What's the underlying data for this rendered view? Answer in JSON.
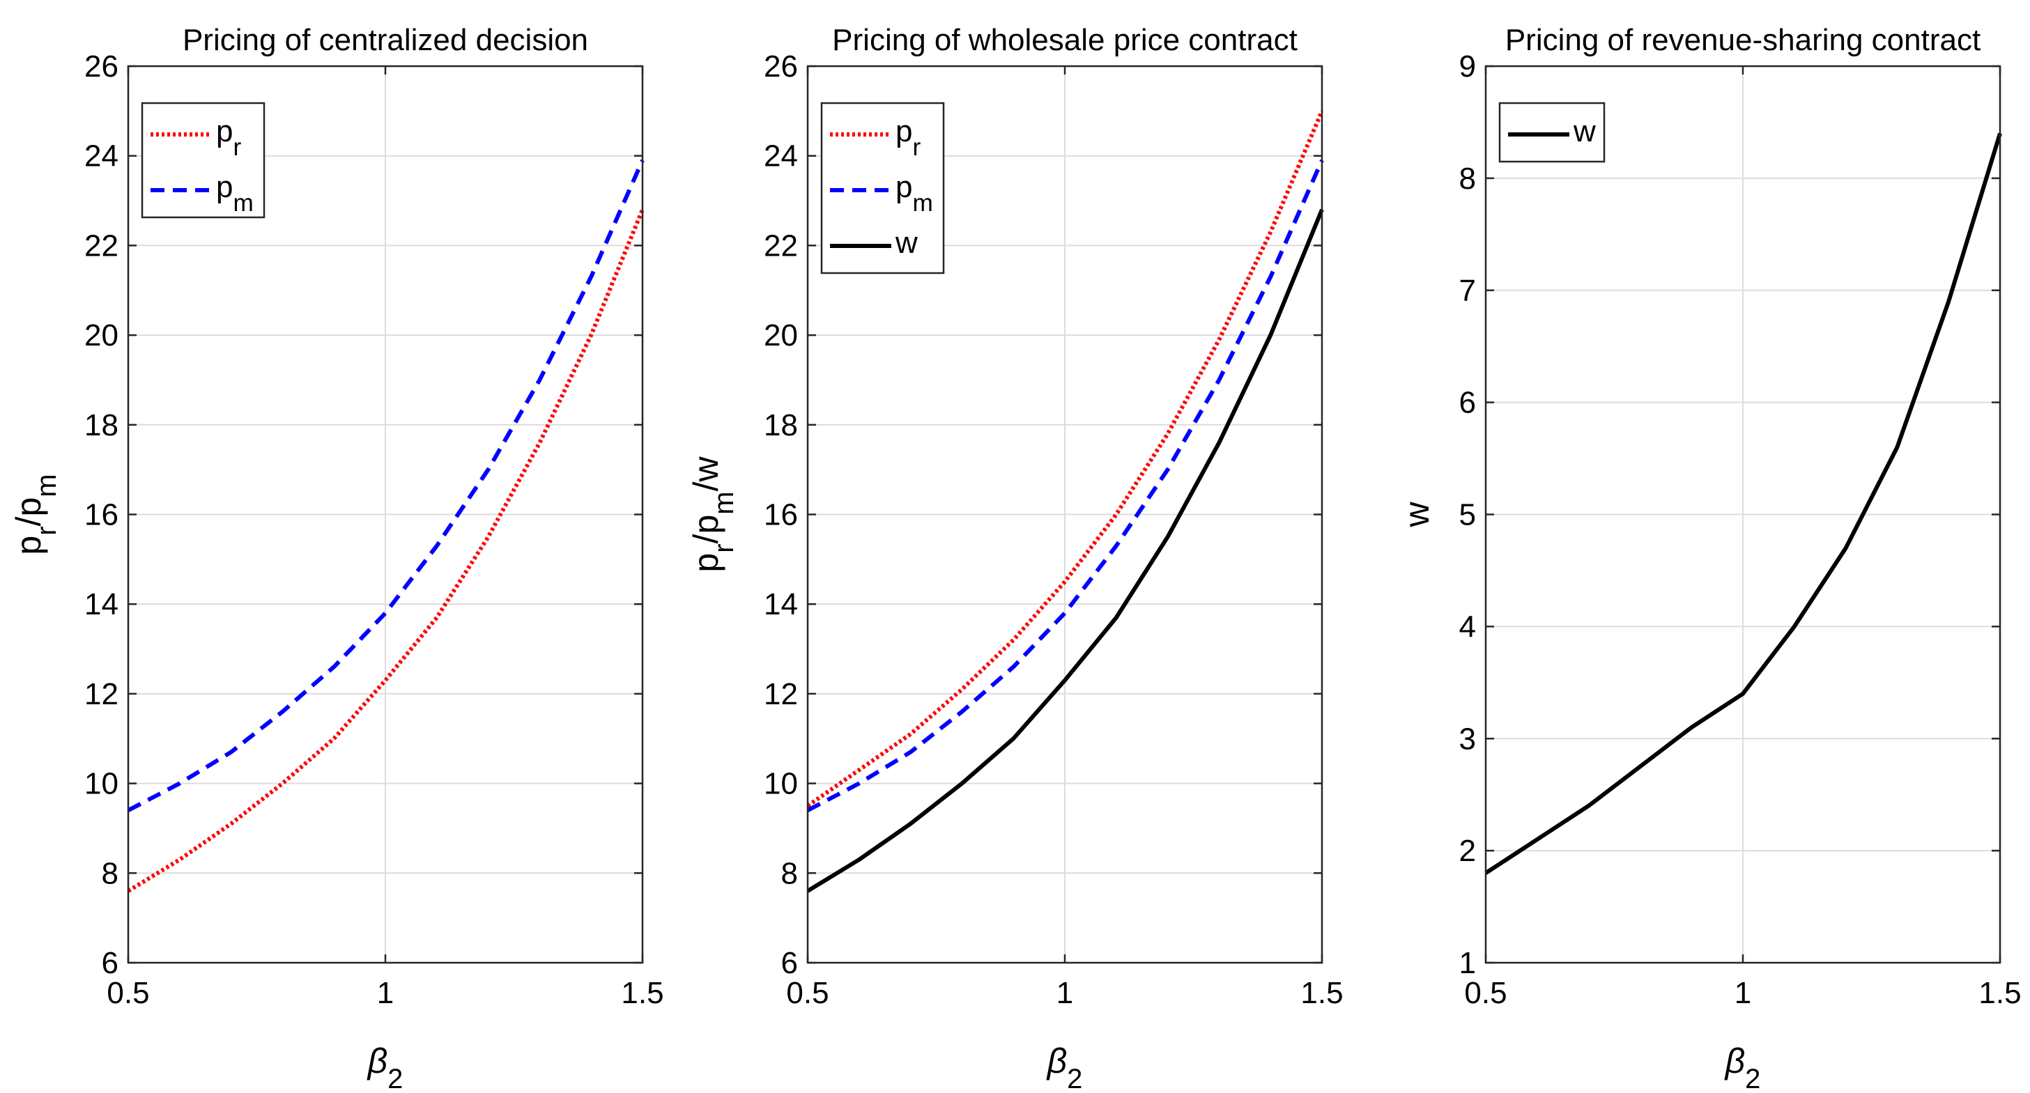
{
  "chart_data": [
    {
      "type": "line",
      "title": "Pricing of centralized decision",
      "xlabel": "β",
      "xlabel_sub": "2",
      "ylabel_parts": [
        {
          "t": "p",
          "sub": false
        },
        {
          "t": "r",
          "sub": true
        },
        {
          "t": "/p",
          "sub": false
        },
        {
          "t": "m",
          "sub": true
        }
      ],
      "xlim": [
        0.5,
        1.5
      ],
      "ylim": [
        6,
        26
      ],
      "xticks": [
        "0.5",
        "1",
        "1.5"
      ],
      "yticks": [
        "6",
        "8",
        "10",
        "12",
        "14",
        "16",
        "18",
        "20",
        "22",
        "24",
        "26"
      ],
      "grid": true,
      "legend_position": "top-left",
      "series": [
        {
          "name": "p",
          "name_sub": "r",
          "color": "#ff0000",
          "style": "dotted",
          "x": [
            0.5,
            0.6,
            0.7,
            0.8,
            0.9,
            1.0,
            1.1,
            1.2,
            1.3,
            1.4,
            1.5
          ],
          "values": [
            7.6,
            8.3,
            9.1,
            10.0,
            11.0,
            12.3,
            13.7,
            15.5,
            17.6,
            20.0,
            22.8
          ]
        },
        {
          "name": "p",
          "name_sub": "m",
          "color": "#0000ff",
          "style": "dashed",
          "x": [
            0.5,
            0.6,
            0.7,
            0.8,
            0.9,
            1.0,
            1.1,
            1.2,
            1.3,
            1.4,
            1.5
          ],
          "values": [
            9.4,
            10.0,
            10.7,
            11.6,
            12.6,
            13.8,
            15.3,
            17.0,
            19.0,
            21.3,
            23.9
          ]
        }
      ]
    },
    {
      "type": "line",
      "title": "Pricing of wholesale price contract",
      "xlabel": "β",
      "xlabel_sub": "2",
      "ylabel_parts": [
        {
          "t": "p",
          "sub": false
        },
        {
          "t": "r",
          "sub": true
        },
        {
          "t": "/p",
          "sub": false
        },
        {
          "t": "m",
          "sub": true
        },
        {
          "t": "/w",
          "sub": false
        }
      ],
      "xlim": [
        0.5,
        1.5
      ],
      "ylim": [
        6,
        26
      ],
      "xticks": [
        "0.5",
        "1",
        "1.5"
      ],
      "yticks": [
        "6",
        "8",
        "10",
        "12",
        "14",
        "16",
        "18",
        "20",
        "22",
        "24",
        "26"
      ],
      "grid": true,
      "legend_position": "top-left",
      "series": [
        {
          "name": "p",
          "name_sub": "r",
          "color": "#ff0000",
          "style": "dotted",
          "x": [
            0.5,
            0.6,
            0.7,
            0.8,
            0.9,
            1.0,
            1.1,
            1.2,
            1.3,
            1.4,
            1.5
          ],
          "values": [
            9.5,
            10.3,
            11.1,
            12.1,
            13.2,
            14.5,
            16.0,
            17.8,
            19.9,
            22.3,
            25.0
          ]
        },
        {
          "name": "p",
          "name_sub": "m",
          "color": "#0000ff",
          "style": "dashed",
          "x": [
            0.5,
            0.6,
            0.7,
            0.8,
            0.9,
            1.0,
            1.1,
            1.2,
            1.3,
            1.4,
            1.5
          ],
          "values": [
            9.4,
            10.0,
            10.7,
            11.6,
            12.6,
            13.8,
            15.3,
            17.0,
            19.0,
            21.3,
            23.9
          ]
        },
        {
          "name": "w",
          "name_sub": "",
          "color": "#000000",
          "style": "solid",
          "x": [
            0.5,
            0.6,
            0.7,
            0.8,
            0.9,
            1.0,
            1.1,
            1.2,
            1.3,
            1.4,
            1.5
          ],
          "values": [
            7.6,
            8.3,
            9.1,
            10.0,
            11.0,
            12.3,
            13.7,
            15.5,
            17.6,
            20.0,
            22.8
          ]
        }
      ]
    },
    {
      "type": "line",
      "title": "Pricing of revenue-sharing contract",
      "xlabel": "β",
      "xlabel_sub": "2",
      "ylabel_parts": [
        {
          "t": "w",
          "sub": false
        }
      ],
      "xlim": [
        0.5,
        1.5
      ],
      "ylim": [
        1,
        9
      ],
      "xticks": [
        "0.5",
        "1",
        "1.5"
      ],
      "yticks": [
        "1",
        "2",
        "3",
        "4",
        "5",
        "6",
        "7",
        "8",
        "9"
      ],
      "grid": true,
      "legend_position": "top-left",
      "series": [
        {
          "name": "w",
          "name_sub": "",
          "color": "#000000",
          "style": "solid",
          "x": [
            0.5,
            0.6,
            0.7,
            0.8,
            0.9,
            1.0,
            1.1,
            1.2,
            1.3,
            1.4,
            1.5
          ],
          "values": [
            1.8,
            2.1,
            2.4,
            2.75,
            3.1,
            3.4,
            4.0,
            4.7,
            5.6,
            6.9,
            8.4
          ]
        }
      ]
    }
  ]
}
